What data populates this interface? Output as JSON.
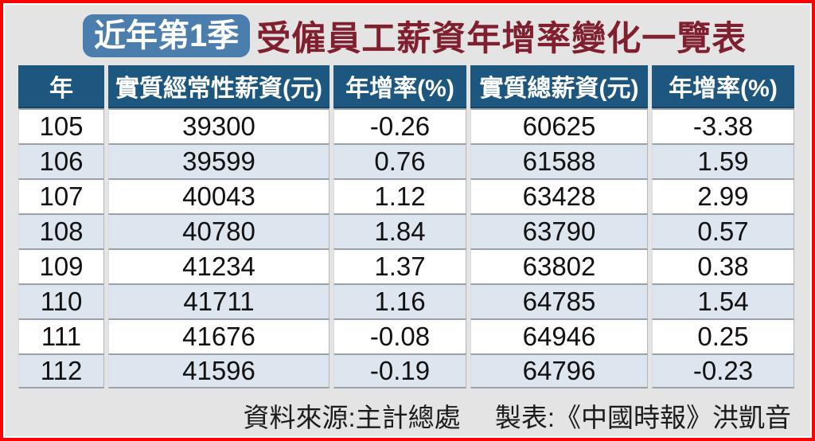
{
  "title": {
    "badge_label": "近年第1季",
    "heading": "受僱員工薪資年增率變化一覽表"
  },
  "colors": {
    "frame_color": "#ff0000",
    "page_bg": "#e4e4e4",
    "badge_bg": "#4b7dad",
    "heading_text": "#801f2e",
    "header_bg": "#1d567e",
    "header_text": "#ffffff",
    "row_alt_bg": "#dde5ee",
    "row_separator": "#9aa0a8"
  },
  "footer": {
    "source": "資料來源:主計總處",
    "credit": "製表:《中國時報》洪凱音"
  },
  "chart_data": {
    "type": "table",
    "title": "近年第1季受僱員工薪資年增率變化一覽表",
    "columns": [
      "年",
      "實質經常性薪資(元)",
      "年增率(%)",
      "實質總薪資(元)",
      "年增率(%)"
    ],
    "rows": [
      [
        105,
        39300,
        -0.26,
        60625,
        -3.38
      ],
      [
        106,
        39599,
        0.76,
        61588,
        1.59
      ],
      [
        107,
        40043,
        1.12,
        63428,
        2.99
      ],
      [
        108,
        40780,
        1.84,
        63790,
        0.57
      ],
      [
        109,
        41234,
        1.37,
        63802,
        0.38
      ],
      [
        110,
        41711,
        1.16,
        64785,
        1.54
      ],
      [
        111,
        41676,
        -0.08,
        64946,
        0.25
      ],
      [
        112,
        41596,
        -0.19,
        64796,
        -0.23
      ]
    ],
    "source": "資料來源:主計總處",
    "credit": "製表:《中國時報》洪凱音"
  }
}
